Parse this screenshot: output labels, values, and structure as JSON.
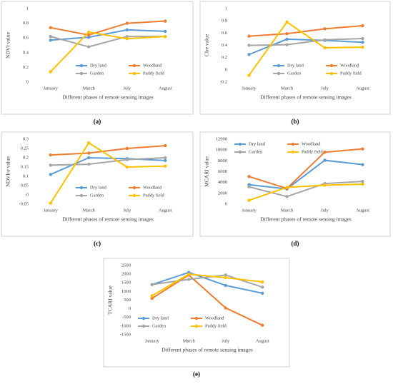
{
  "chart_data": [
    {
      "type": "line",
      "label": "(a)",
      "y_label": "NDVI value",
      "x_label": "Different phases of remote sensing images",
      "categories": [
        "January",
        "March",
        "July",
        "August"
      ],
      "ylim": [
        0,
        1
      ],
      "yticks": [
        0,
        0.2,
        0.4,
        0.6,
        0.8,
        1
      ],
      "legend": "lower right",
      "series": [
        {
          "name": "Dry land",
          "color": "#5b9bd5",
          "values": [
            0.57,
            0.61,
            0.71,
            0.69
          ]
        },
        {
          "name": "Woodland",
          "color": "#ed7d31",
          "values": [
            0.74,
            0.64,
            0.8,
            0.83
          ]
        },
        {
          "name": "Garden",
          "color": "#a5a5a5",
          "values": [
            0.62,
            0.48,
            0.62,
            0.62
          ]
        },
        {
          "name": "Paddy field",
          "color": "#ffc000",
          "values": [
            0.14,
            0.68,
            0.59,
            0.62
          ]
        }
      ]
    },
    {
      "type": "line",
      "label": "(b)",
      "y_label": "CIre value",
      "x_label": "Different phases of remote sensing images",
      "categories": [
        "January",
        "March",
        "July",
        "August"
      ],
      "ylim": [
        -0.2,
        1
      ],
      "yticks": [
        -0.2,
        0,
        0.2,
        0.4,
        0.6,
        0.8,
        1
      ],
      "legend": "lower right",
      "series": [
        {
          "name": "Dry land",
          "color": "#5b9bd5",
          "values": [
            0.25,
            0.5,
            0.48,
            0.45
          ]
        },
        {
          "name": "Woodland",
          "color": "#ed7d31",
          "values": [
            0.55,
            0.59,
            0.67,
            0.72
          ]
        },
        {
          "name": "Garden",
          "color": "#a5a5a5",
          "values": [
            0.4,
            0.41,
            0.49,
            0.51
          ]
        },
        {
          "name": "Paddy field",
          "color": "#ffc000",
          "values": [
            -0.09,
            0.78,
            0.36,
            0.37
          ]
        }
      ]
    },
    {
      "type": "line",
      "label": "(c)",
      "y_label": "NDVIre value",
      "x_label": "Different phases of remote sensing images",
      "categories": [
        "January",
        "March",
        "July",
        "August"
      ],
      "ylim": [
        -0.05,
        0.3
      ],
      "yticks": [
        -0.05,
        0,
        0.05,
        0.1,
        0.15,
        0.2,
        0.25,
        0.3
      ],
      "legend": "lower right",
      "series": [
        {
          "name": "Dry land",
          "color": "#5b9bd5",
          "values": [
            0.11,
            0.2,
            0.195,
            0.185
          ]
        },
        {
          "name": "Woodland",
          "color": "#ed7d31",
          "values": [
            0.215,
            0.225,
            0.25,
            0.265
          ]
        },
        {
          "name": "Garden",
          "color": "#a5a5a5",
          "values": [
            0.16,
            0.165,
            0.19,
            0.2
          ]
        },
        {
          "name": "Paddy field",
          "color": "#ffc000",
          "values": [
            -0.045,
            0.28,
            0.15,
            0.155
          ]
        }
      ]
    },
    {
      "type": "line",
      "label": "(d)",
      "y_label": "MCARI value",
      "x_label": "Different phases of remote sensing images",
      "categories": [
        "January",
        "March",
        "July",
        "August"
      ],
      "ylim": [
        0,
        12000
      ],
      "yticks": [
        0,
        2000,
        4000,
        6000,
        8000,
        10000,
        12000
      ],
      "legend": "upper left",
      "series": [
        {
          "name": "Dry land",
          "color": "#5b9bd5",
          "values": [
            3600,
            2800,
            8100,
            7300
          ]
        },
        {
          "name": "Woodland",
          "color": "#ed7d31",
          "values": [
            5100,
            2900,
            9600,
            10200
          ]
        },
        {
          "name": "Garden",
          "color": "#a5a5a5",
          "values": [
            3200,
            1400,
            3800,
            4200
          ]
        },
        {
          "name": "Paddy field",
          "color": "#ffc000",
          "values": [
            700,
            3100,
            3500,
            3700
          ]
        }
      ]
    },
    {
      "type": "line",
      "label": "(e)",
      "y_label": "TCARI value",
      "x_label": "Different phases of remote sensing images",
      "categories": [
        "January",
        "March",
        "July",
        "August"
      ],
      "ylim": [
        -1500,
        2500
      ],
      "yticks": [
        -1500,
        -1000,
        -500,
        0,
        500,
        1000,
        1500,
        2000,
        2500
      ],
      "legend": "lower left",
      "series": [
        {
          "name": "Dry land",
          "color": "#5b9bd5",
          "values": [
            1400,
            2100,
            1350,
            900
          ]
        },
        {
          "name": "Woodland",
          "color": "#ed7d31",
          "values": [
            600,
            1950,
            50,
            -950
          ]
        },
        {
          "name": "Garden",
          "color": "#a5a5a5",
          "values": [
            1400,
            1700,
            1950,
            1250
          ]
        },
        {
          "name": "Paddy field",
          "color": "#ffc000",
          "values": [
            750,
            2000,
            1800,
            1550
          ]
        }
      ]
    }
  ]
}
